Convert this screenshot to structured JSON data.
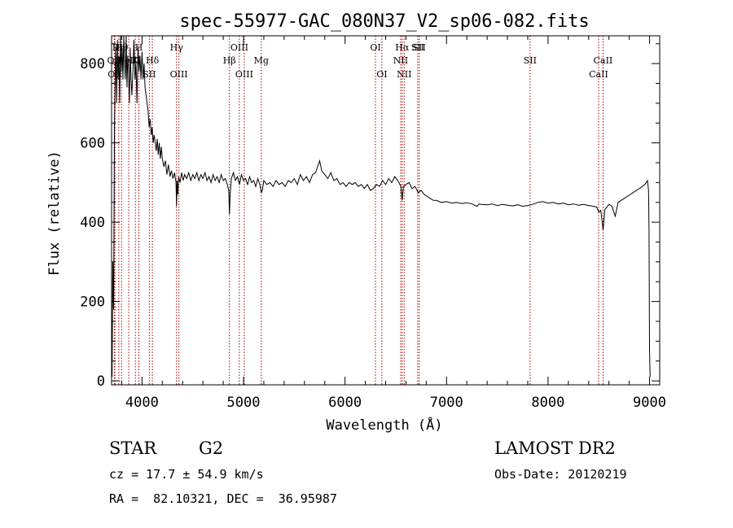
{
  "chart_data": {
    "type": "line",
    "title": "spec-55977-GAC_080N37_V2_sp06-082.fits",
    "xlabel": "Wavelength (Å)",
    "ylabel": "Flux (relative)",
    "xlim": [
      3700,
      9100
    ],
    "ylim": [
      -10,
      870
    ],
    "xticks": [
      4000,
      5000,
      6000,
      7000,
      8000,
      9000
    ],
    "yticks": [
      0,
      200,
      400,
      600,
      800
    ],
    "grid": false,
    "series": [
      {
        "color": "#000000",
        "x": [
          3705,
          3712,
          3720,
          3728,
          3735,
          3742,
          3750,
          3758,
          3765,
          3772,
          3780,
          3788,
          3796,
          3804,
          3812,
          3820,
          3828,
          3836,
          3844,
          3852,
          3860,
          3868,
          3876,
          3884,
          3892,
          3900,
          3910,
          3920,
          3930,
          3940,
          3950,
          3960,
          3970,
          3980,
          3990,
          4000,
          4010,
          4020,
          4030,
          4040,
          4050,
          4060,
          4070,
          4080,
          4090,
          4100,
          4110,
          4120,
          4130,
          4140,
          4150,
          4160,
          4170,
          4180,
          4190,
          4200,
          4215,
          4230,
          4245,
          4260,
          4275,
          4290,
          4305,
          4320,
          4335,
          4340,
          4345,
          4352,
          4360,
          4375,
          4390,
          4405,
          4420,
          4440,
          4460,
          4480,
          4500,
          4520,
          4540,
          4560,
          4580,
          4600,
          4620,
          4640,
          4660,
          4680,
          4700,
          4720,
          4740,
          4760,
          4780,
          4800,
          4820,
          4840,
          4855,
          4861,
          4868,
          4880,
          4900,
          4920,
          4940,
          4960,
          4980,
          5000,
          5020,
          5040,
          5060,
          5080,
          5100,
          5120,
          5140,
          5160,
          5175,
          5185,
          5200,
          5230,
          5260,
          5290,
          5320,
          5350,
          5380,
          5410,
          5440,
          5470,
          5500,
          5530,
          5560,
          5590,
          5620,
          5650,
          5680,
          5710,
          5730,
          5750,
          5770,
          5800,
          5830,
          5860,
          5890,
          5920,
          5950,
          5980,
          6010,
          6040,
          6070,
          6100,
          6130,
          6160,
          6190,
          6220,
          6250,
          6280,
          6310,
          6340,
          6370,
          6400,
          6430,
          6460,
          6490,
          6520,
          6550,
          6563,
          6575,
          6600,
          6630,
          6660,
          6690,
          6720,
          6750,
          6780,
          6810,
          6840,
          6870,
          6900,
          6950,
          7000,
          7050,
          7100,
          7150,
          7200,
          7250,
          7300,
          7320,
          7340,
          7400,
          7450,
          7500,
          7550,
          7600,
          7650,
          7700,
          7750,
          7800,
          7850,
          7900,
          7950,
          8000,
          8050,
          8100,
          8150,
          8200,
          8250,
          8300,
          8350,
          8400,
          8450,
          8480,
          8500,
          8520,
          8542,
          8560,
          8580,
          8600,
          8630,
          8662,
          8690,
          8720,
          8750,
          8780,
          8810,
          8840,
          8870,
          8900,
          8930,
          8960,
          8980,
          8990,
          8995,
          9000,
          9003,
          9006
        ],
        "values": [
          10,
          300,
          180,
          620,
          760,
          840,
          700,
          860,
          760,
          820,
          700,
          880,
          780,
          840,
          760,
          880,
          800,
          760,
          880,
          740,
          820,
          780,
          700,
          840,
          760,
          720,
          780,
          860,
          760,
          800,
          700,
          840,
          780,
          820,
          760,
          830,
          760,
          800,
          740,
          720,
          700,
          680,
          640,
          660,
          620,
          640,
          600,
          620,
          600,
          580,
          610,
          570,
          600,
          560,
          590,
          560,
          540,
          555,
          520,
          545,
          515,
          530,
          510,
          525,
          500,
          440,
          505,
          470,
          515,
          500,
          525,
          505,
          520,
          510,
          525,
          505,
          520,
          510,
          525,
          505,
          520,
          510,
          525,
          505,
          515,
          500,
          520,
          505,
          515,
          500,
          520,
          505,
          510,
          495,
          480,
          420,
          470,
          510,
          525,
          505,
          515,
          495,
          520,
          505,
          510,
          495,
          515,
          500,
          505,
          490,
          510,
          495,
          475,
          480,
          505,
          495,
          500,
          490,
          505,
          495,
          500,
          490,
          505,
          500,
          510,
          495,
          520,
          505,
          515,
          500,
          520,
          525,
          540,
          555,
          530,
          520,
          510,
          525,
          505,
          510,
          495,
          500,
          490,
          500,
          495,
          500,
          490,
          495,
          485,
          495,
          480,
          485,
          495,
          490,
          505,
          495,
          510,
          500,
          515,
          505,
          490,
          455,
          490,
          495,
          500,
          485,
          490,
          475,
          480,
          470,
          465,
          460,
          455,
          455,
          450,
          452,
          448,
          450,
          447,
          449,
          446,
          440,
          446,
          445,
          444,
          446,
          442,
          445,
          443,
          441,
          444,
          440,
          442,
          445,
          450,
          452,
          448,
          450,
          446,
          448,
          444,
          446,
          443,
          445,
          442,
          440,
          438,
          425,
          430,
          380,
          432,
          438,
          445,
          440,
          415,
          450,
          455,
          460,
          465,
          470,
          475,
          480,
          485,
          490,
          497,
          505,
          480,
          380,
          80,
          40,
          10
        ]
      }
    ],
    "lines": [
      {
        "x": 3727,
        "label": "OII",
        "row": 2
      },
      {
        "x": 3733,
        "label": "OII",
        "row": 3
      },
      {
        "x": 3771,
        "label": "Hη",
        "row": 1
      },
      {
        "x": 3798,
        "label": "Hθ",
        "row": 1
      },
      {
        "x": 3869,
        "label": "NeIII",
        "row": 2
      },
      {
        "x": 3934,
        "label": "K",
        "row": 2
      },
      {
        "x": 3969,
        "label": "H",
        "row": 1
      },
      {
        "x": 4072,
        "label": "SII",
        "row": 3
      },
      {
        "x": 4102,
        "label": "Hδ",
        "row": 2
      },
      {
        "x": 4340,
        "label": "Hγ",
        "row": 1
      },
      {
        "x": 4363,
        "label": "OIII",
        "row": 3
      },
      {
        "x": 4861,
        "label": "Hβ",
        "row": 2
      },
      {
        "x": 4959,
        "label": "OIII",
        "row": 1
      },
      {
        "x": 5007,
        "label": "OIII",
        "row": 3
      },
      {
        "x": 5175,
        "label": "Mg",
        "row": 2
      },
      {
        "x": 6300,
        "label": "OI",
        "row": 1
      },
      {
        "x": 6363,
        "label": "OI",
        "row": 3
      },
      {
        "x": 6548,
        "label": "NII",
        "row": 2
      },
      {
        "x": 6563,
        "label": "Hα",
        "row": 1
      },
      {
        "x": 6583,
        "label": "NII",
        "row": 3
      },
      {
        "x": 6716,
        "label": "SII",
        "row": 1
      },
      {
        "x": 6731,
        "label": "SII",
        "row": 1
      },
      {
        "x": 7823,
        "label": "SII",
        "row": 2
      },
      {
        "x": 8498,
        "label": "CaII",
        "row": 3
      },
      {
        "x": 8542,
        "label": "CaII",
        "row": 2
      }
    ]
  },
  "info": {
    "class_label": "STAR",
    "subclass_label": "G2",
    "cz_line": "cz = 17.7 ± 54.9 km/s",
    "coords_line": "RA =  82.10321, DEC =  36.95987",
    "survey_label": "LAMOST DR2",
    "obs_date_line": "Obs-Date: 20120219"
  }
}
